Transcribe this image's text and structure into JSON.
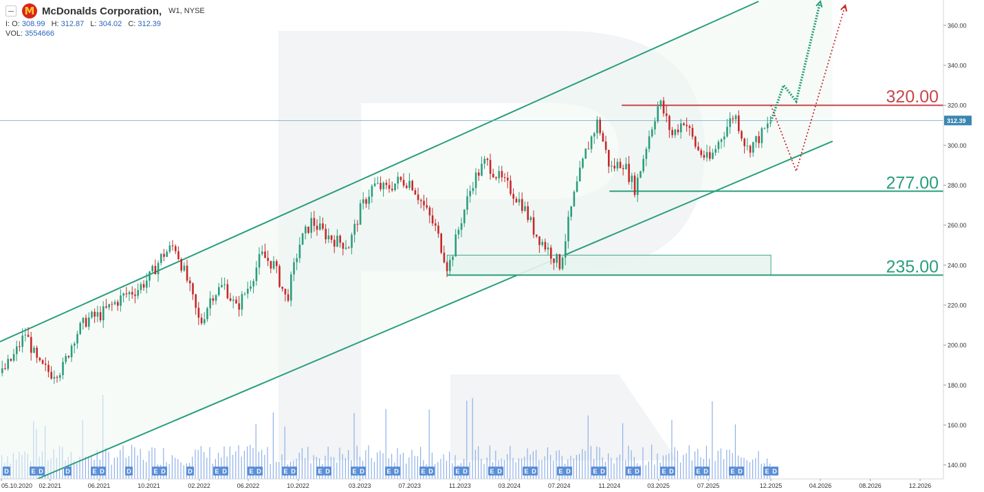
{
  "header": {
    "logo_letter": "M",
    "symbol_name": "McDonalds Corporation,",
    "timeframe": "W1, NYSE",
    "open_label": "I: O:",
    "open": "308.99",
    "high_label": "H:",
    "high": "312.87",
    "low_label": "L:",
    "low": "304.02",
    "close_label": "C:",
    "close": "312.39",
    "vol_label": "VOL:",
    "volume": "3554666"
  },
  "colors": {
    "up": "#2a9d7c",
    "down": "#c62828",
    "channel": "#2a9d7c",
    "resistance": "#c8454a",
    "support": "#2a9d7c",
    "volume": "#8fb0e8",
    "price_line": "#6aa6c8",
    "zone_fill": "#e8f5f0"
  },
  "price_axis": {
    "ticks": [
      "360.00",
      "340.00",
      "320.00",
      "300.00",
      "280.00",
      "260.00",
      "240.00",
      "220.00",
      "200.00",
      "180.00",
      "160.00",
      "140.00"
    ],
    "current_price_label": "312.39"
  },
  "time_axis": {
    "ticks": [
      "05.10.2020",
      "02.2021",
      "06.2021",
      "10.2021",
      "02.2022",
      "06.2022",
      "10.2022",
      "03.2023",
      "07.2023",
      "11.2023",
      "03.2024",
      "07.2024",
      "11.2024",
      "03.2025",
      "07.2025",
      "12.2025",
      "04.2026",
      "08.2026",
      "12.2026"
    ]
  },
  "levels": {
    "resistance_label": "320.00",
    "support_mid_label": "277.00",
    "support_low_label": "235.00"
  },
  "chart_data": {
    "type": "candlestick",
    "symbol": "McDonalds Corporation",
    "timeframe": "W1",
    "exchange": "NYSE",
    "ylim": [
      133,
      372
    ],
    "x_range": [
      "2020-10-05",
      "2026-12"
    ],
    "last_bar": {
      "open": 308.99,
      "high": 312.87,
      "low": 304.02,
      "close": 312.39,
      "volume": 3554666
    },
    "price_path": [
      [
        "2020-10-05",
        186
      ],
      [
        "2020-11",
        194
      ],
      [
        "2020-12",
        206
      ],
      [
        "2021-01",
        190
      ],
      [
        "2021-02",
        186
      ],
      [
        "2021-03",
        188
      ],
      [
        "2021-04",
        205
      ],
      [
        "2021-05",
        213
      ],
      [
        "2021-06",
        215
      ],
      [
        "2021-07",
        220
      ],
      [
        "2021-08",
        225
      ],
      [
        "2021-09",
        228
      ],
      [
        "2021-10",
        234
      ],
      [
        "2021-11",
        245
      ],
      [
        "2021-12",
        250
      ],
      [
        "2022-01",
        232
      ],
      [
        "2022-02",
        210
      ],
      [
        "2022-03",
        225
      ],
      [
        "2022-04",
        230
      ],
      [
        "2022-05",
        218
      ],
      [
        "2022-06",
        230
      ],
      [
        "2022-07",
        245
      ],
      [
        "2022-08",
        240
      ],
      [
        "2022-09",
        222
      ],
      [
        "2022-10",
        250
      ],
      [
        "2022-11",
        262
      ],
      [
        "2022-12",
        256
      ],
      [
        "2023-01",
        252
      ],
      [
        "2023-02",
        250
      ],
      [
        "2023-03",
        268
      ],
      [
        "2023-04",
        280
      ],
      [
        "2023-05",
        278
      ],
      [
        "2023-06",
        282
      ],
      [
        "2023-07",
        282
      ],
      [
        "2023-08",
        270
      ],
      [
        "2023-09",
        258
      ],
      [
        "2023-10",
        238
      ],
      [
        "2023-11",
        262
      ],
      [
        "2023-12",
        282
      ],
      [
        "2024-01",
        292
      ],
      [
        "2024-02",
        284
      ],
      [
        "2024-03",
        278
      ],
      [
        "2024-04",
        270
      ],
      [
        "2024-05",
        256
      ],
      [
        "2024-06",
        248
      ],
      [
        "2024-07",
        240
      ],
      [
        "2024-08",
        272
      ],
      [
        "2024-09",
        296
      ],
      [
        "2024-10",
        312
      ],
      [
        "2024-11",
        288
      ],
      [
        "2024-12",
        292
      ],
      [
        "2025-01",
        278
      ],
      [
        "2025-02",
        303
      ],
      [
        "2025-03",
        322
      ],
      [
        "2025-04",
        305
      ],
      [
        "2025-05",
        313
      ],
      [
        "2025-06",
        298
      ],
      [
        "2025-07",
        292
      ],
      [
        "2025-08",
        305
      ],
      [
        "2025-09",
        316
      ],
      [
        "2025-10",
        298
      ],
      [
        "2025-11",
        304
      ],
      [
        "2025-12",
        312.39
      ]
    ],
    "levels": [
      {
        "label": "320.00",
        "value": 320,
        "role": "resistance"
      },
      {
        "label": "277.00",
        "value": 277,
        "role": "support"
      },
      {
        "label": "235.00",
        "value": 235,
        "role": "support"
      }
    ],
    "zone": {
      "from": "2023-10",
      "to": "2025-12",
      "low": 235,
      "high": 245
    },
    "channel": {
      "upper": [
        [
          "2020-10-05",
          202
        ],
        [
          "2025-11",
          372
        ]
      ],
      "lower": [
        [
          "2021-01",
          133
        ],
        [
          "2026-05",
          302
        ]
      ]
    },
    "scenarios": [
      {
        "style": "dotted",
        "color": "up",
        "path": [
          [
            "2025-12",
            312
          ],
          [
            "2026-01",
            330
          ],
          [
            "2026-02",
            322
          ],
          [
            "2026-04",
            372
          ]
        ]
      },
      {
        "style": "dotted",
        "color": "down",
        "path": [
          [
            "2025-12",
            320
          ],
          [
            "2026-02",
            287
          ],
          [
            "2026-06",
            370
          ]
        ]
      }
    ],
    "event_markers": [
      "D",
      "E D",
      "D",
      "E D",
      "D",
      "E D",
      "D",
      "E D",
      "E D",
      "E D",
      "E D",
      "E D",
      "E D",
      "E D",
      "E D",
      "E D",
      "E D",
      "E D",
      "E D",
      "E D",
      "E D",
      "E D",
      "E D",
      "E D"
    ],
    "current_price": 312.39
  }
}
